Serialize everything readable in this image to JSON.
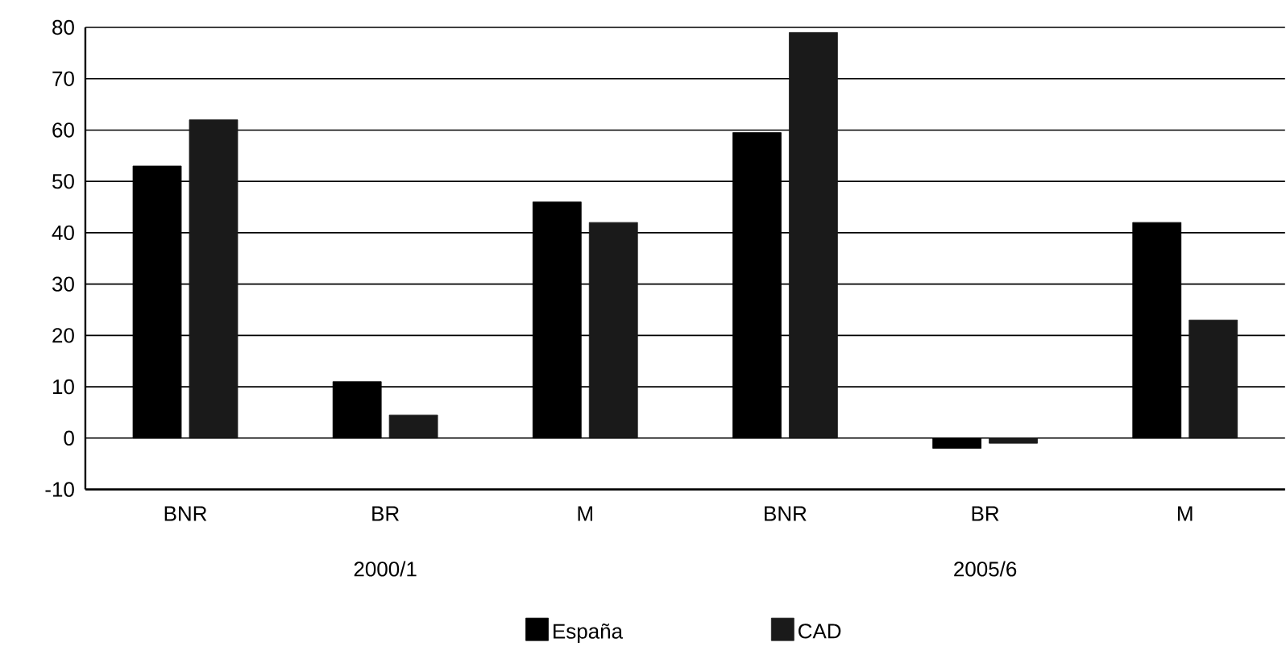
{
  "chart_data": {
    "type": "bar",
    "categories": [
      "BNR",
      "BR",
      "M",
      "BNR",
      "BR",
      "M"
    ],
    "series": [
      {
        "name": "España",
        "color": "#000000",
        "values": [
          53,
          11,
          46,
          59.5,
          -2,
          42
        ]
      },
      {
        "name": "CAD",
        "color": "#1a1a1a",
        "values": [
          62,
          4.5,
          42,
          79,
          -1,
          23
        ]
      }
    ],
    "annotations": [
      "2000/1",
      "2005/6"
    ],
    "ylim": [
      -10,
      80
    ],
    "yticks": [
      -10,
      0,
      10,
      20,
      30,
      40,
      50,
      60,
      70,
      80
    ],
    "grid": "y",
    "legend": "bottom"
  }
}
